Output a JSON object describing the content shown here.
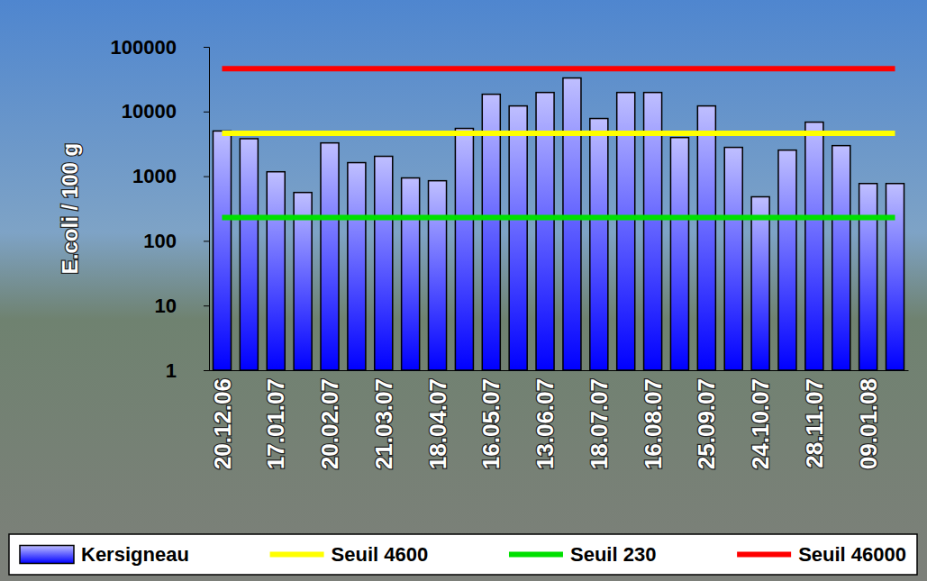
{
  "chart_data": {
    "type": "bar",
    "log": "y",
    "grid": false,
    "legend": "bottom",
    "y_label": "E.coli / 100 g",
    "categories": [
      "20.12.06",
      null,
      "17.01.07",
      null,
      "20.02.07",
      null,
      "21.03.07",
      null,
      "18.04.07",
      null,
      "16.05.07",
      null,
      "13.06.07",
      null,
      "18.07.07",
      null,
      "16.08.07",
      null,
      "25.09.07",
      null,
      "24.10.07",
      null,
      "28.11.07",
      null,
      "09.01.08",
      null
    ],
    "ylim": [
      1,
      100000
    ],
    "yticks": [
      1,
      10,
      100,
      1000,
      10000,
      100000
    ],
    "series": [
      {
        "name": "Kersigneau",
        "type": "bar",
        "color": "#0000ff",
        "values": [
          5000,
          3800,
          1170,
          560,
          3270,
          1620,
          2030,
          940,
          850,
          5480,
          18500,
          12200,
          19700,
          33000,
          7800,
          19700,
          19700,
          3960,
          12200,
          2790,
          480,
          2530,
          6850,
          2970,
          770,
          770
        ]
      },
      {
        "name": "Seuil 4600",
        "type": "line",
        "color": "#ffff00",
        "values": [
          4600,
          4600,
          4600,
          4600,
          4600,
          4600,
          4600,
          4600,
          4600,
          4600,
          4600,
          4600,
          4600,
          4600,
          4600,
          4600,
          4600,
          4600,
          4600,
          4600,
          4600,
          4600,
          4600,
          4600,
          4600,
          4600
        ]
      },
      {
        "name": "Seuil 230",
        "type": "line",
        "color": "#00e000",
        "values": [
          230,
          230,
          230,
          230,
          230,
          230,
          230,
          230,
          230,
          230,
          230,
          230,
          230,
          230,
          230,
          230,
          230,
          230,
          230,
          230,
          230,
          230,
          230,
          230,
          230,
          230
        ]
      },
      {
        "name": "Seuil 46000",
        "type": "line",
        "color": "#ff0000",
        "values": [
          46000,
          46000,
          46000,
          46000,
          46000,
          46000,
          46000,
          46000,
          46000,
          46000,
          46000,
          46000,
          46000,
          46000,
          46000,
          46000,
          46000,
          46000,
          46000,
          46000,
          46000,
          46000,
          46000,
          46000,
          46000,
          46000
        ]
      }
    ]
  }
}
